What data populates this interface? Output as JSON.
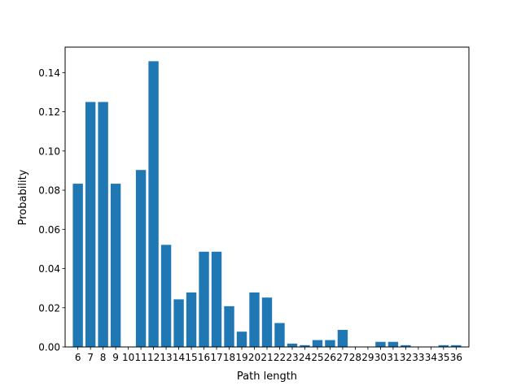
{
  "chart_data": {
    "type": "bar",
    "xlabel": "Path length",
    "ylabel": "Probability",
    "categories": [
      6,
      7,
      8,
      9,
      10,
      11,
      12,
      13,
      14,
      15,
      16,
      17,
      18,
      19,
      20,
      21,
      22,
      23,
      24,
      25,
      26,
      27,
      28,
      29,
      30,
      31,
      32,
      33,
      34,
      35,
      36
    ],
    "values": [
      0.0833,
      0.125,
      0.125,
      0.0833,
      0.0,
      0.0903,
      0.1458,
      0.0521,
      0.0243,
      0.0278,
      0.0486,
      0.0486,
      0.0208,
      0.0078,
      0.0278,
      0.0252,
      0.0122,
      0.0017,
      0.0009,
      0.0035,
      0.0035,
      0.0087,
      0.0,
      0.0,
      0.0026,
      0.0026,
      0.0009,
      0.0,
      0.0,
      0.0009,
      0.0009
    ],
    "yticks": [
      0.0,
      0.02,
      0.04,
      0.06,
      0.08,
      0.1,
      0.12,
      0.14
    ],
    "ytick_labels": [
      "0.00",
      "0.02",
      "0.04",
      "0.06",
      "0.08",
      "0.10",
      "0.12",
      "0.14"
    ],
    "ylim": [
      0,
      0.153
    ],
    "xlim": [
      4.99,
      37.01
    ],
    "grid": false,
    "bar_color": "#1f77b4"
  }
}
